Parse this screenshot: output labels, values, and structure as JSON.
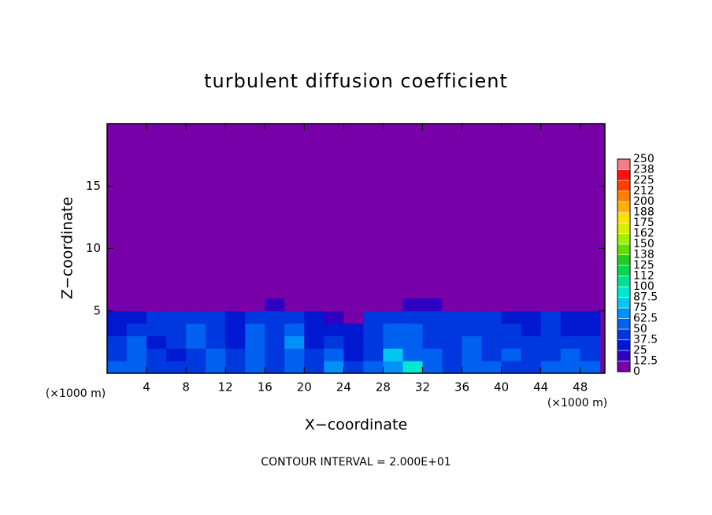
{
  "chart_data": {
    "type": "heatmap",
    "title": "turbulent diffusion coefficient",
    "x_label": "X−coordinate",
    "y_label": "Z−coordinate",
    "x_unit": "(×1000 m)",
    "footer": "CONTOUR INTERVAL = 2.000E+01",
    "xlim": [
      0,
      50.5
    ],
    "ylim": [
      0,
      20
    ],
    "xticks": [
      4,
      8,
      12,
      16,
      20,
      24,
      28,
      32,
      36,
      40,
      44,
      48
    ],
    "yticks": [
      5,
      10,
      15
    ],
    "x": [
      1,
      3,
      5,
      7,
      9,
      11,
      13,
      15,
      17,
      19,
      21,
      23,
      25,
      27,
      29,
      31,
      33,
      35,
      37,
      39,
      41,
      43,
      45,
      47,
      49
    ],
    "y": [
      0.5,
      1.5,
      2.5,
      3.5,
      4.5,
      5.5
    ],
    "z": [
      [
        50,
        62,
        45,
        40,
        45,
        55,
        45,
        50,
        40,
        55,
        45,
        65,
        40,
        50,
        70,
        95,
        60,
        45,
        50,
        50,
        45,
        45,
        50,
        55,
        50
      ],
      [
        45,
        55,
        40,
        35,
        45,
        50,
        40,
        55,
        45,
        60,
        40,
        60,
        35,
        45,
        80,
        60,
        50,
        40,
        55,
        45,
        50,
        40,
        45,
        50,
        45
      ],
      [
        40,
        50,
        35,
        40,
        55,
        45,
        30,
        50,
        40,
        65,
        35,
        40,
        30,
        45,
        60,
        55,
        45,
        40,
        50,
        45,
        45,
        40,
        45,
        40,
        40
      ],
      [
        35,
        40,
        40,
        45,
        50,
        40,
        35,
        55,
        45,
        60,
        30,
        25,
        30,
        45,
        50,
        50,
        40,
        45,
        45,
        40,
        40,
        35,
        40,
        35,
        35
      ],
      [
        30,
        35,
        40,
        45,
        40,
        40,
        30,
        40,
        45,
        40,
        30,
        20,
        0,
        40,
        40,
        45,
        40,
        40,
        45,
        40,
        35,
        35,
        40,
        30,
        30
      ],
      [
        0,
        0,
        0,
        0,
        0,
        0,
        0,
        10,
        20,
        0,
        0,
        0,
        0,
        0,
        0,
        20,
        15,
        10,
        0,
        0,
        5,
        10,
        0,
        0,
        0
      ]
    ],
    "levels": [
      0,
      12.5,
      25,
      37.5,
      50,
      62.5,
      75,
      87.5,
      100,
      {
        "value": 112.5,
        "label": "112"
      },
      125,
      {
        "value": 137.5,
        "label": "138"
      },
      150,
      {
        "value": 162.5,
        "label": "162"
      },
      175,
      {
        "value": 187.5,
        "label": "188"
      },
      200,
      {
        "value": 212.5,
        "label": "212"
      },
      225,
      {
        "value": 237.5,
        "label": "238"
      },
      250
    ],
    "colors": [
      "#7800a8",
      "#3000c0",
      "#0018d0",
      "#0038e0",
      "#0060f0",
      "#0090f8",
      "#00c8f0",
      "#00e8d0",
      "#00e090",
      "#00d850",
      "#20d020",
      "#60e000",
      "#a0f000",
      "#d8f000",
      "#ffe000",
      "#ffb000",
      "#ff8000",
      "#ff4000",
      "#ff1010",
      "#f08080"
    ]
  }
}
